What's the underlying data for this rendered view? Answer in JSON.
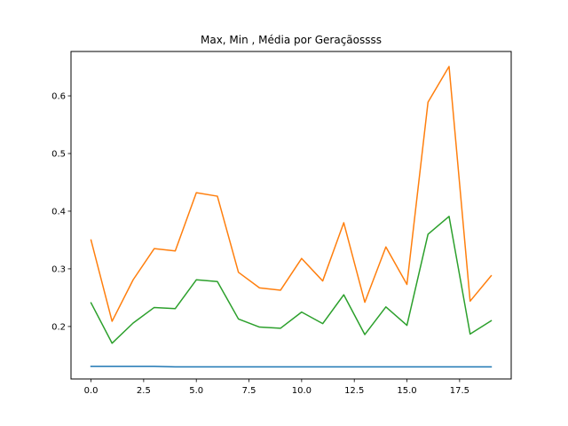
{
  "chart_data": {
    "type": "line",
    "title": "Max, Min , Média por Geraçãossss",
    "xlabel": "",
    "ylabel": "",
    "xlim": [
      -0.95,
      19.95
    ],
    "ylim": [
      0.109,
      0.677
    ],
    "x_ticks": [
      0.0,
      2.5,
      5.0,
      7.5,
      10.0,
      12.5,
      15.0,
      17.5
    ],
    "x_tick_labels": [
      "0.0",
      "2.5",
      "5.0",
      "7.5",
      "10.0",
      "12.5",
      "15.0",
      "17.5"
    ],
    "y_ticks": [
      0.2,
      0.3,
      0.4,
      0.5,
      0.6
    ],
    "y_tick_labels": [
      "0.2",
      "0.3",
      "0.4",
      "0.5",
      "0.6"
    ],
    "grid": false,
    "x": [
      0,
      1,
      2,
      3,
      4,
      5,
      6,
      7,
      8,
      9,
      10,
      11,
      12,
      13,
      14,
      15,
      16,
      17,
      18,
      19
    ],
    "series": [
      {
        "color": "#1f77b4",
        "values": [
          0.131,
          0.131,
          0.131,
          0.131,
          0.13,
          0.13,
          0.13,
          0.13,
          0.13,
          0.13,
          0.13,
          0.13,
          0.13,
          0.13,
          0.13,
          0.13,
          0.13,
          0.13,
          0.13,
          0.13
        ]
      },
      {
        "color": "#ff7f0e",
        "values": [
          0.35,
          0.209,
          0.281,
          0.335,
          0.331,
          0.432,
          0.426,
          0.294,
          0.267,
          0.263,
          0.318,
          0.279,
          0.38,
          0.242,
          0.338,
          0.273,
          0.589,
          0.651,
          0.244,
          0.288
        ]
      },
      {
        "color": "#2ca02c",
        "values": [
          0.241,
          0.171,
          0.206,
          0.233,
          0.231,
          0.281,
          0.278,
          0.213,
          0.199,
          0.197,
          0.225,
          0.205,
          0.255,
          0.186,
          0.234,
          0.202,
          0.36,
          0.391,
          0.187,
          0.21
        ]
      }
    ]
  }
}
